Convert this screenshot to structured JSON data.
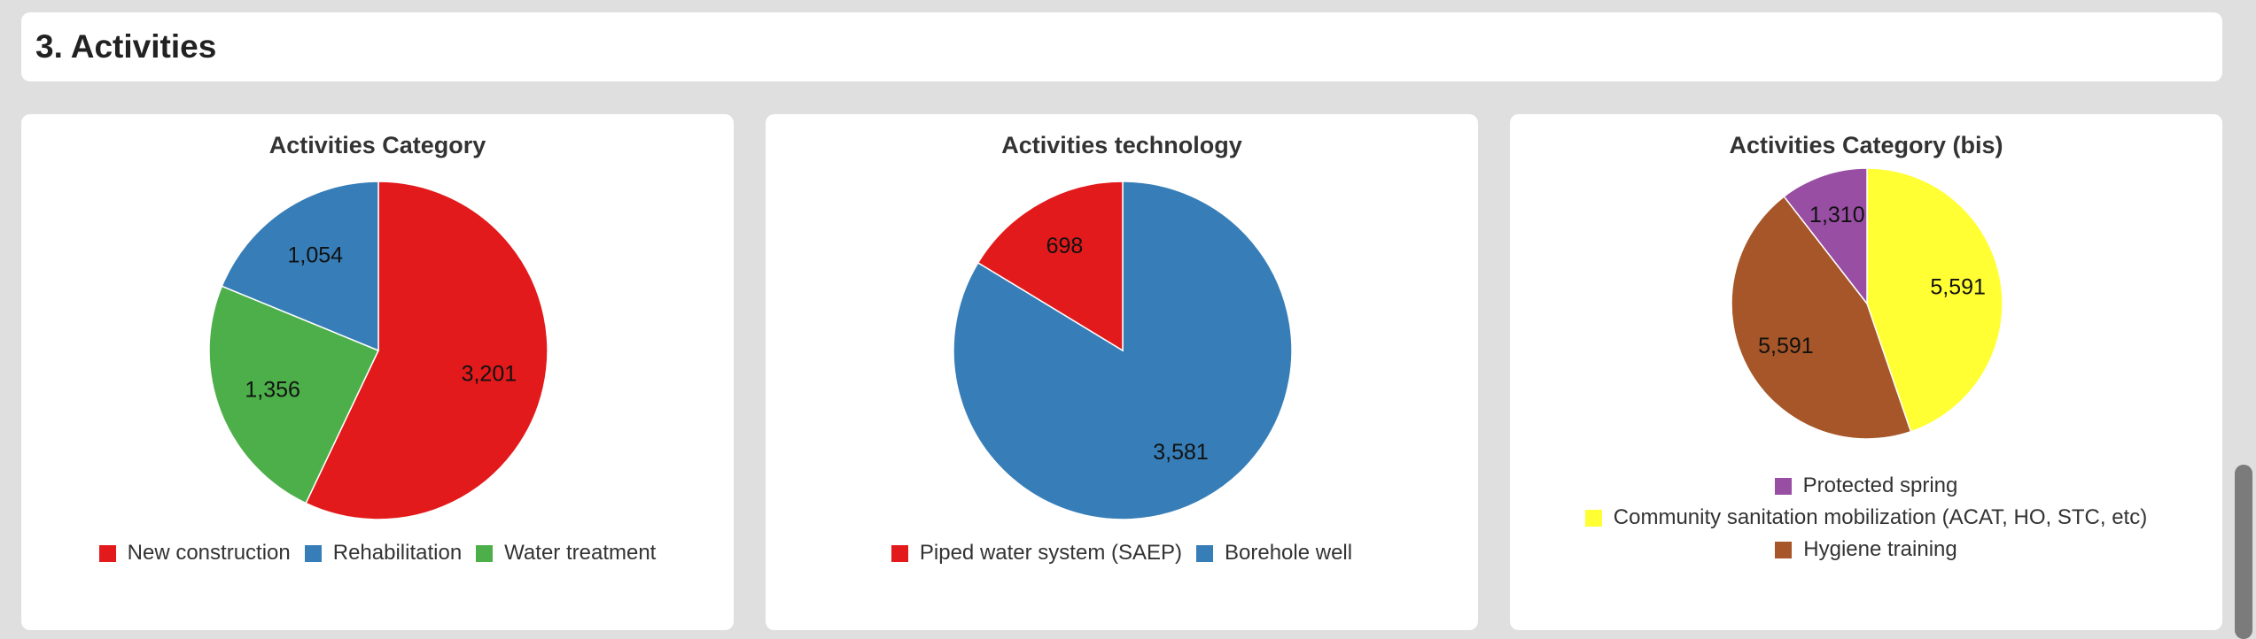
{
  "section": {
    "title": "3. Activities"
  },
  "chart_data": [
    {
      "type": "pie",
      "title": "Activities Category",
      "slices": [
        {
          "label": "New construction",
          "value": 3201,
          "display": "3,201",
          "color": "#e31a1c"
        },
        {
          "label": "Water treatment",
          "value": 1356,
          "display": "1,356",
          "color": "#4daf4a"
        },
        {
          "label": "Rehabilitation",
          "value": 1054,
          "display": "1,054",
          "color": "#377eb8"
        }
      ],
      "legend": [
        "New construction",
        "Rehabilitation",
        "Water treatment"
      ],
      "legend_colors": [
        "#e31a1c",
        "#377eb8",
        "#4daf4a"
      ],
      "legend_position": "bottom"
    },
    {
      "type": "pie",
      "title": "Activities technology",
      "slices": [
        {
          "label": "Borehole well",
          "value": 3581,
          "display": "3,581",
          "color": "#377eb8"
        },
        {
          "label": "Piped water system (SAEP)",
          "value": 698,
          "display": "698",
          "color": "#e31a1c"
        }
      ],
      "legend": [
        "Piped water system (SAEP)",
        "Borehole well"
      ],
      "legend_colors": [
        "#e31a1c",
        "#377eb8"
      ],
      "legend_position": "bottom"
    },
    {
      "type": "pie",
      "title": "Activities Category (bis)",
      "slices": [
        {
          "label": "Community sanitation mobilization (ACAT, HO, STC, etc)",
          "value": 5591,
          "display": "5,591",
          "color": "#ffff33"
        },
        {
          "label": "Hygiene training",
          "value": 5591,
          "display": "5,591",
          "color": "#a65628"
        },
        {
          "label": "Protected spring",
          "value": 1310,
          "display": "1,310",
          "color": "#984ea3"
        }
      ],
      "legend": [
        "Protected spring",
        "Community sanitation mobilization (ACAT, HO, STC, etc)",
        "Hygiene training"
      ],
      "legend_colors": [
        "#984ea3",
        "#ffff33",
        "#a65628"
      ],
      "legend_position": "bottom"
    }
  ]
}
